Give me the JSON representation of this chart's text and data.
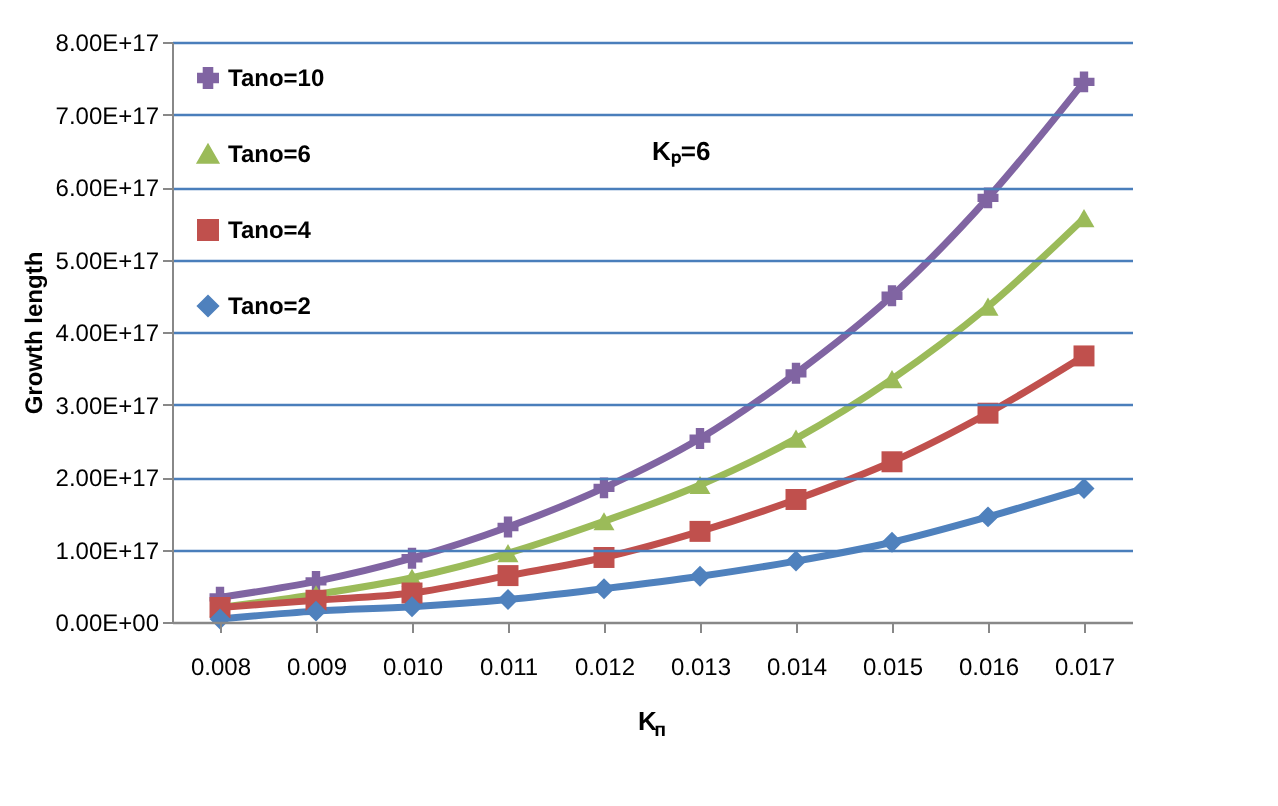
{
  "chart_data": {
    "type": "line",
    "categories": [
      "0.008",
      "0.009",
      "0.010",
      "0.011",
      "0.012",
      "0.013",
      "0.014",
      "0.015",
      "0.016",
      "0.017"
    ],
    "series": [
      {
        "name": "Tano=10",
        "color": "#8064a2",
        "marker": "cross",
        "values": [
          3.4e+16,
          5.6e+16,
          8.8e+16,
          1.31e+17,
          1.85e+17,
          2.53e+17,
          3.43e+17,
          4.5e+17,
          5.85e+17,
          7.45e+17
        ]
      },
      {
        "name": "Tano=6",
        "color": "#9bbb59",
        "marker": "triangle",
        "values": [
          2e+16,
          3.8e+16,
          6.1e+16,
          9.5e+16,
          1.39e+17,
          1.89e+17,
          2.53e+17,
          3.35e+17,
          4.35e+17,
          5.57e+17
        ]
      },
      {
        "name": "Tano=4",
        "color": "#c0504d",
        "marker": "square",
        "values": [
          2e+16,
          3e+16,
          4e+16,
          6.4e+16,
          8.9e+16,
          1.25e+17,
          1.69e+17,
          2.21e+17,
          2.88e+17,
          3.67e+17
        ]
      },
      {
        "name": "Tano=2",
        "color": "#4f81bd",
        "marker": "diamond",
        "values": [
          4000000000000000.0,
          1.5e+16,
          2.1e+16,
          3.1e+16,
          4.6e+16,
          6.3e+16,
          8.4e+16,
          1.1e+17,
          1.45e+17,
          1.84e+17
        ]
      }
    ],
    "xlabel": "K$_{п}$",
    "ylabel": "Growth length",
    "ylim": [
      0,
      8e+17
    ],
    "yticks": [
      {
        "value": 0,
        "label": "0.00E+00"
      },
      {
        "value": 1e+17,
        "label": "1.00E+17"
      },
      {
        "value": 2e+17,
        "label": "2.00E+17"
      },
      {
        "value": 3e+17,
        "label": "3.00E+17"
      },
      {
        "value": 4e+17,
        "label": "4.00E+17"
      },
      {
        "value": 5e+17,
        "label": "5.00E+17"
      },
      {
        "value": 6e+17,
        "label": "6.00E+17"
      },
      {
        "value": 7e+17,
        "label": "7.00E+17"
      },
      {
        "value": 8e+17,
        "label": "8.00E+17"
      }
    ],
    "annotations": [
      "Kₚ=6"
    ],
    "grid": "y",
    "legend": "top left",
    "line_style": "solid"
  }
}
